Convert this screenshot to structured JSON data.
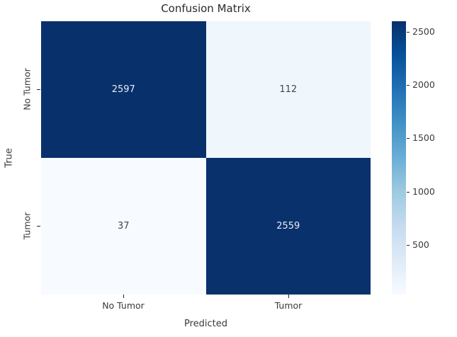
{
  "chart_data": {
    "type": "heatmap",
    "title": "Confusion Matrix",
    "xlabel": "Predicted",
    "ylabel": "True",
    "x_categories": [
      "No Tumor",
      "Tumor"
    ],
    "y_categories": [
      "No Tumor",
      "Tumor"
    ],
    "matrix": [
      [
        2597,
        112
      ],
      [
        37,
        2559
      ]
    ],
    "colormap": "Blues",
    "grid": false,
    "legend_position": "right-colorbar",
    "colorbar": {
      "ticks": [
        500,
        1000,
        1500,
        2000,
        2500
      ],
      "vmin": 37,
      "vmax": 2597
    },
    "colors": {
      "cell_dark": "#08306b",
      "cell_light_high": "#eff6fc",
      "cell_light_low": "#f7fbff",
      "annotation_on_dark": "#e9edf4",
      "annotation_on_light": "#3d4854",
      "axis_text": "#3a3a3a"
    }
  }
}
